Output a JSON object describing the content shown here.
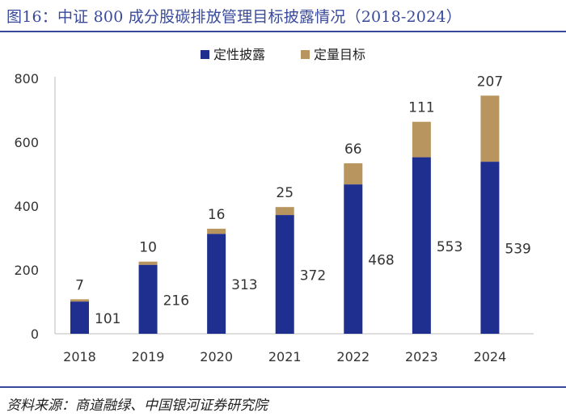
{
  "figure": {
    "title": "图16：中证 800 成分股碳排放管理目标披露情况（2018-2024）",
    "source": "资料来源：商道融绿、中国银河证券研究院"
  },
  "colors": {
    "qualitative": "#1f2f8f",
    "quantitative": "#b8955e",
    "rule": "#3a4a9a"
  },
  "chart_data": {
    "type": "bar",
    "stacked": true,
    "title": "",
    "xlabel": "",
    "ylabel": "",
    "ylim": [
      0,
      800
    ],
    "yticks": [
      0,
      200,
      400,
      600,
      800
    ],
    "grid": false,
    "legend_position": "top",
    "categories": [
      "2018",
      "2019",
      "2020",
      "2021",
      "2022",
      "2023",
      "2024"
    ],
    "series": [
      {
        "name": "定性披露",
        "values": [
          101,
          216,
          313,
          372,
          468,
          553,
          539
        ]
      },
      {
        "name": "定量目标",
        "values": [
          7,
          10,
          16,
          25,
          66,
          111,
          207
        ]
      }
    ]
  }
}
